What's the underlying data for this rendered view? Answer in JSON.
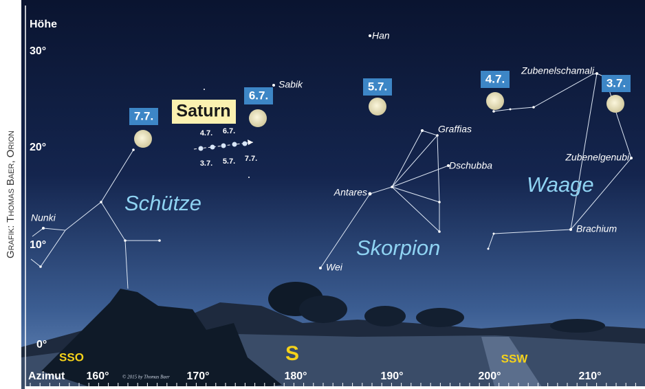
{
  "side_credit": "Grafik: Thomas Baer, Orion",
  "axes": {
    "altitude_title": "Höhe",
    "altitude_ticks": [
      "30°",
      "20°",
      "10°",
      "0°"
    ],
    "azimuth_title": "Azimut",
    "azimuth_ticks": [
      "160°",
      "170°",
      "180°",
      "190°",
      "200°",
      "210°"
    ]
  },
  "directions": [
    "SSO",
    "S",
    "SSW"
  ],
  "stars": [
    "Han",
    "Sabik",
    "Nunki",
    "Antares",
    "Graffias",
    "Dschubba",
    "Wei",
    "Zubenelschamali",
    "Zubenelgenubi",
    "Brachium"
  ],
  "constellations": [
    "Schütze",
    "Skorpion",
    "Waage"
  ],
  "moon_dates": [
    "7.7.",
    "6.7.",
    "5.7.",
    "4.7.",
    "3.7."
  ],
  "saturn": {
    "label": "Saturn",
    "dates_above": [
      "4.7.",
      "6.7."
    ],
    "dates_below": [
      "3.7.",
      "5.7.",
      "7.7."
    ]
  },
  "credit": "© 2015 by Thomas Baer"
}
